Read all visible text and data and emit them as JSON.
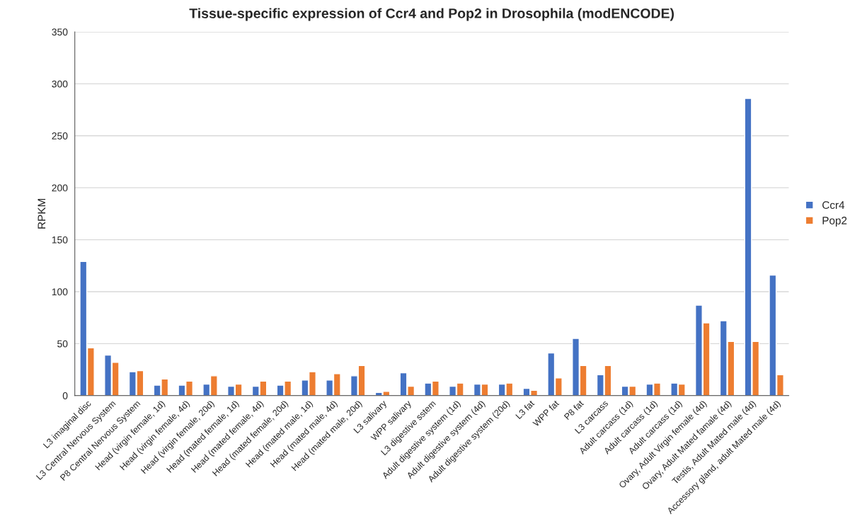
{
  "chart_data": {
    "type": "bar",
    "title": "Tissue-specific expression of Ccr4 and Pop2 in Drosophila (modENCODE)",
    "ylabel": "RPKM",
    "categories": [
      "L3 imaginal disc",
      "L3 Central Nervous System",
      "P8 Central Nervous System",
      "Head (virgin female, 1d)",
      "Head (virgin female, 4d)",
      "Head (virgin female, 20d)",
      "Head (mated female, 1d)",
      "Head (mated female, 4d)",
      "Head (mated female, 20d)",
      "Head (mated male, 1d)",
      "Head (mated male, 4d)",
      "Head (mated male, 20d)",
      "L3 salivary",
      "WPP salivary",
      "L3 digestive sstem",
      "Adult digestive system (1d)",
      "Adult digestive system (4d)",
      "Adult digestive system (20d)",
      "L3 fat",
      "WPP fat",
      "P8 fat",
      "L3 carcass",
      "Adult carcass (1d)",
      "Adult carcass (1d)",
      "Adult carcass (1d)",
      "Ovary, Adult Virgin female (4d)",
      "Ovary, Adult Mated famale (4d)",
      "Testis, Adult Mated male (4d)",
      "Accessory gland, adult Mated male (4d)"
    ],
    "series": [
      {
        "name": "Ccr4",
        "color": "#4472c4",
        "values": [
          129,
          39,
          23,
          10,
          10,
          11,
          9,
          9,
          10,
          15,
          15,
          19,
          3,
          22,
          12,
          9,
          11,
          11,
          7,
          41,
          55,
          20,
          9,
          11,
          12,
          87,
          72,
          286,
          116
        ]
      },
      {
        "name": "Pop2",
        "color": "#ed7d31",
        "values": [
          46,
          32,
          24,
          16,
          14,
          19,
          11,
          14,
          14,
          23,
          21,
          29,
          4,
          9,
          14,
          12,
          11,
          12,
          5,
          17,
          29,
          29,
          9,
          12,
          11,
          70,
          52,
          52,
          20
        ]
      }
    ],
    "ylim": [
      0,
      350
    ],
    "yticks": [
      0,
      50,
      100,
      150,
      200,
      250,
      300,
      350
    ],
    "grid": "y",
    "legend": "right"
  }
}
